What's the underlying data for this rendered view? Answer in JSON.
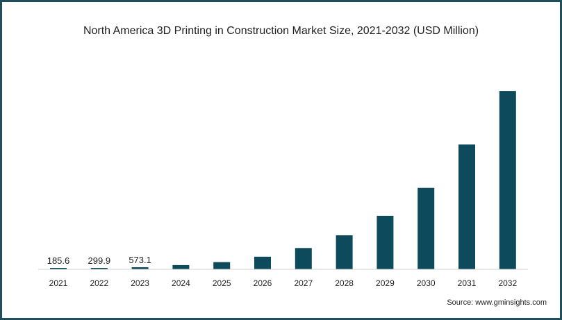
{
  "chart_data": {
    "type": "bar",
    "title": "North America 3D Printing in Construction Market Size, 2021-2032 (USD Million)",
    "xlabel": "",
    "ylabel": "",
    "categories": [
      "2021",
      "2022",
      "2023",
      "2024",
      "2025",
      "2026",
      "2027",
      "2028",
      "2029",
      "2030",
      "2031",
      "2032"
    ],
    "values": [
      185.6,
      299.9,
      573.1,
      1180,
      2000,
      3500,
      5900,
      9400,
      14800,
      22500,
      34500,
      49300
    ],
    "data_labels": [
      "185.6",
      "299.9",
      "573.1",
      "",
      "",
      "",
      "",
      "",
      "",
      "",
      "",
      ""
    ],
    "ylim": [
      0,
      52000
    ],
    "grid": false,
    "bar_color": "#0d4b5c",
    "source": "Source: www.gminsights.com"
  }
}
